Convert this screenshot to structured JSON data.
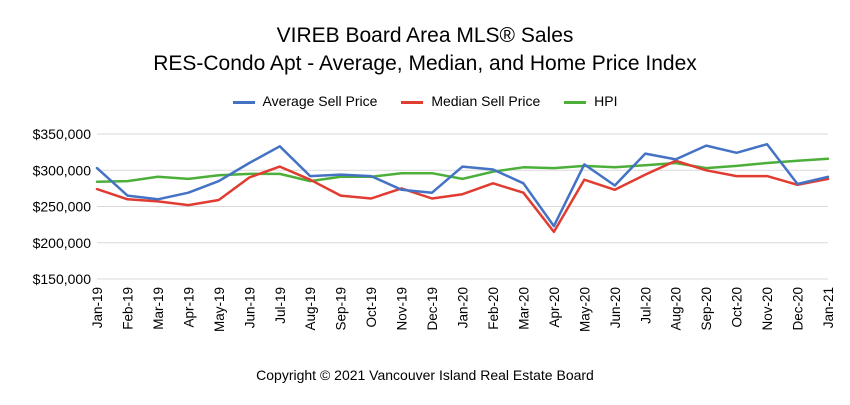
{
  "chart_data": {
    "type": "line",
    "title_lines": [
      "VIREB Board Area MLS® Sales",
      "RES-Condo Apt - Average, Median, and Home Price Index"
    ],
    "xlabel": "",
    "ylabel": "",
    "ylim": [
      150000,
      350000
    ],
    "yticks": [
      150000,
      200000,
      250000,
      300000,
      350000
    ],
    "ytick_labels": [
      "$150,000",
      "$200,000",
      "$250,000",
      "$300,000",
      "$350,000"
    ],
    "grid": "horizontal",
    "legend_position": "top",
    "categories": [
      "Jan-19",
      "Feb-19",
      "Mar-19",
      "Apr-19",
      "May-19",
      "Jun-19",
      "Jul-19",
      "Aug-19",
      "Sep-19",
      "Oct-19",
      "Nov-19",
      "Dec-19",
      "Jan-20",
      "Feb-20",
      "Mar-20",
      "Apr-20",
      "May-20",
      "Jun-20",
      "Jul-20",
      "Aug-20",
      "Sep-20",
      "Oct-20",
      "Nov-20",
      "Dec-20",
      "Jan-21"
    ],
    "series": [
      {
        "name": "Average Sell Price",
        "color": "#4472C4",
        "values": [
          303000,
          265000,
          260000,
          269000,
          285000,
          310000,
          333000,
          292000,
          294000,
          292000,
          273000,
          269000,
          305000,
          301000,
          282000,
          223000,
          308000,
          279000,
          323000,
          315000,
          334000,
          324000,
          336000,
          281000,
          291000
        ]
      },
      {
        "name": "Median Sell Price",
        "color": "#E03C31",
        "values": [
          274000,
          260000,
          257000,
          252000,
          259000,
          290000,
          305000,
          287000,
          265000,
          261000,
          275000,
          261000,
          267000,
          282000,
          269000,
          215000,
          287000,
          273000,
          294000,
          313000,
          300000,
          292000,
          292000,
          280000,
          288000
        ]
      },
      {
        "name": "HPI",
        "color": "#4CAF3A",
        "values": [
          284000,
          285000,
          291000,
          288000,
          293000,
          295000,
          295000,
          285000,
          291000,
          291000,
          296000,
          296000,
          288000,
          298000,
          304000,
          303000,
          306000,
          304000,
          307000,
          310000,
          303000,
          306000,
          310000,
          313000,
          316000
        ]
      }
    ]
  },
  "copyright": "Copyright © 2021 Vancouver Island Real Estate Board"
}
